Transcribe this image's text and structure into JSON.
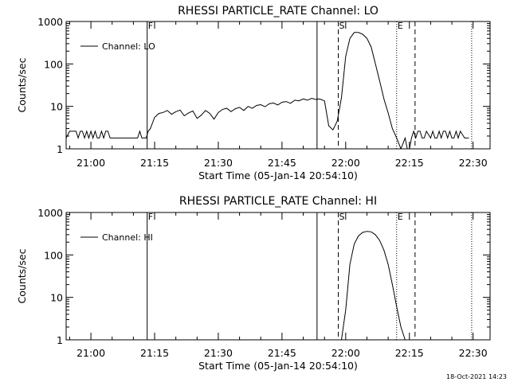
{
  "footer": {
    "timestamp": "18-Oct-2021 14:23"
  },
  "chart_data": [
    {
      "type": "line",
      "title": "RHESSI PARTICLE_RATE Channel: LO",
      "xlabel": "Start Time (05-Jan-14 20:54:10)",
      "ylabel": "Counts/sec",
      "y_scale": "log",
      "ylim": [
        1,
        1000
      ],
      "xlim": [
        "20:54:10",
        "22:34:00"
      ],
      "x_ticks": [
        "21:00",
        "21:15",
        "21:30",
        "21:45",
        "22:00",
        "22:15",
        "22:30"
      ],
      "y_ticks": [
        "1",
        "10",
        "100",
        "1000"
      ],
      "legend": {
        "placement": "top-left",
        "entries": [
          "Channel: LO"
        ]
      },
      "markers": [
        {
          "label": "F",
          "time": "21:13:15",
          "style": "solid"
        },
        {
          "label": "",
          "time": "21:53:15",
          "style": "solid"
        },
        {
          "label": "S",
          "time": "21:58:15",
          "style": "dashed"
        },
        {
          "label": "E",
          "time": "22:12:00",
          "style": "dotted"
        },
        {
          "label": "",
          "time": "22:16:20",
          "style": "dashed"
        },
        {
          "label": "",
          "time": "22:29:40",
          "style": "dotted"
        }
      ],
      "series": [
        {
          "name": "Channel: LO",
          "x": [
            "20:54:10",
            "20:55:00",
            "20:55:30",
            "20:56:30",
            "20:57:00",
            "20:57:30",
            "20:58:00",
            "20:58:30",
            "20:59:00",
            "20:59:30",
            "21:00:00",
            "21:00:30",
            "21:01:00",
            "21:01:30",
            "21:02:00",
            "21:02:30",
            "21:03:00",
            "21:03:30",
            "21:04:00",
            "21:04:30",
            "21:05:00",
            "21:06:00",
            "21:08:00",
            "21:10:00",
            "21:11:00",
            "21:11:30",
            "21:12:00",
            "21:12:30",
            "21:13:00",
            "21:13:30",
            "21:14:00",
            "21:15:00",
            "21:16:00",
            "21:17:00",
            "21:18:00",
            "21:19:00",
            "21:20:00",
            "21:21:00",
            "21:22:00",
            "21:23:00",
            "21:24:00",
            "21:25:00",
            "21:26:00",
            "21:27:00",
            "21:28:00",
            "21:29:00",
            "21:30:00",
            "21:31:00",
            "21:32:00",
            "21:33:00",
            "21:34:00",
            "21:35:00",
            "21:36:00",
            "21:37:00",
            "21:38:00",
            "21:39:00",
            "21:40:00",
            "21:41:00",
            "21:42:00",
            "21:43:00",
            "21:44:00",
            "21:45:00",
            "21:46:00",
            "21:47:00",
            "21:48:00",
            "21:49:00",
            "21:50:00",
            "21:51:00",
            "21:52:00",
            "21:53:00",
            "21:53:30",
            "21:54:00",
            "21:55:00",
            "21:56:00",
            "21:57:00",
            "21:58:00",
            "21:59:00",
            "22:00:00",
            "22:01:00",
            "22:02:00",
            "22:03:00",
            "22:04:00",
            "22:05:00",
            "22:06:00",
            "22:07:00",
            "22:08:00",
            "22:09:00",
            "22:10:00",
            "22:11:00",
            "22:12:00",
            "22:13:00",
            "22:14:00",
            "22:14:30",
            "22:15:00",
            "22:15:30",
            "22:16:00",
            "22:16:30",
            "22:17:00",
            "22:17:30",
            "22:18:00",
            "22:18:30",
            "22:19:00",
            "22:20:00",
            "22:20:30",
            "22:21:00",
            "22:21:30",
            "22:22:00",
            "22:22:30",
            "22:23:00",
            "22:23:30",
            "22:24:00",
            "22:24:30",
            "22:25:00",
            "22:25:30",
            "22:26:00",
            "22:26:30",
            "22:27:00",
            "22:28:00",
            "22:29:00"
          ],
          "y": [
            1.8,
            2.6,
            2.6,
            2.6,
            1.8,
            2.6,
            2.6,
            1.8,
            2.6,
            1.8,
            2.6,
            1.8,
            2.6,
            1.8,
            1.8,
            2.6,
            1.8,
            2.6,
            2.6,
            1.8,
            1.8,
            1.8,
            1.8,
            1.8,
            1.8,
            2.6,
            1.8,
            1.8,
            1.8,
            2.6,
            3.0,
            5.5,
            6.8,
            7.2,
            8.0,
            6.5,
            7.5,
            8.2,
            6.0,
            7.0,
            7.8,
            5.2,
            6.2,
            8.0,
            6.8,
            5.0,
            7.2,
            8.5,
            9.0,
            7.5,
            8.8,
            9.5,
            8.0,
            10.0,
            9.0,
            10.5,
            11.0,
            9.8,
            11.5,
            12.0,
            10.8,
            12.5,
            13.0,
            11.8,
            14.0,
            13.5,
            15.0,
            14.0,
            15.5,
            14.5,
            15.0,
            14.8,
            13.5,
            3.5,
            2.8,
            4.5,
            16.0,
            150.0,
            400.0,
            550.0,
            550.0,
            500.0,
            400.0,
            250.0,
            100.0,
            40.0,
            15.0,
            7.0,
            3.0,
            1.8,
            1.0,
            1.8,
            1.0,
            1.0,
            1.8,
            2.6,
            1.8,
            2.6,
            2.6,
            1.8,
            1.8,
            2.6,
            1.8,
            2.6,
            1.8,
            1.8,
            2.6,
            1.8,
            2.6,
            2.6,
            1.8,
            2.6,
            1.8,
            1.8,
            2.6,
            1.8,
            2.6,
            1.8,
            1.8
          ]
        }
      ]
    },
    {
      "type": "line",
      "title": "RHESSI PARTICLE_RATE Channel: HI",
      "xlabel": "Start Time (05-Jan-14 20:54:10)",
      "ylabel": "Counts/sec",
      "y_scale": "log",
      "ylim": [
        1,
        1000
      ],
      "xlim": [
        "20:54:10",
        "22:34:00"
      ],
      "x_ticks": [
        "21:00",
        "21:15",
        "21:30",
        "21:45",
        "22:00",
        "22:15",
        "22:30"
      ],
      "y_ticks": [
        "1",
        "10",
        "100",
        "1000"
      ],
      "legend": {
        "placement": "top-left",
        "entries": [
          "Channel: HI"
        ]
      },
      "markers": [
        {
          "label": "F",
          "time": "21:13:15",
          "style": "solid"
        },
        {
          "label": "",
          "time": "21:53:15",
          "style": "solid"
        },
        {
          "label": "S",
          "time": "21:58:15",
          "style": "dashed"
        },
        {
          "label": "E",
          "time": "22:12:00",
          "style": "dotted"
        },
        {
          "label": "",
          "time": "22:16:20",
          "style": "dashed"
        },
        {
          "label": "",
          "time": "22:29:40",
          "style": "dotted"
        }
      ],
      "series": [
        {
          "name": "Channel: HI",
          "x": [
            "21:59:00",
            "22:00:00",
            "22:01:00",
            "22:02:00",
            "22:03:00",
            "22:04:00",
            "22:05:00",
            "22:06:00",
            "22:07:00",
            "22:08:00",
            "22:09:00",
            "22:10:00",
            "22:11:00",
            "22:12:00",
            "22:13:00",
            "22:14:00"
          ],
          "y": [
            1.0,
            5.0,
            60.0,
            180.0,
            280.0,
            340.0,
            360.0,
            350.0,
            300.0,
            220.0,
            130.0,
            60.0,
            20.0,
            6.0,
            2.0,
            1.0
          ]
        }
      ]
    }
  ]
}
